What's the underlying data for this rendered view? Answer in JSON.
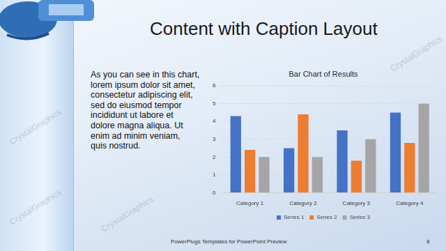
{
  "slide": {
    "title": "Content with Caption Layout",
    "caption": [
      "As you can see in this chart,",
      "lorem ipsum dolor sit amet,",
      "consectetur adipiscing elit,",
      "sed do eiusmod tempor",
      "incididunt ut labore et",
      "dolore magna aliqua. Ut",
      "enim ad minim veniam,",
      "quis nostrud."
    ],
    "footer": "PowerPlugs Templates for PowerPoint Preview",
    "page": "8",
    "watermark": "CrystalGraphics"
  },
  "chart_data": {
    "type": "bar",
    "title": "Bar Chart of Results",
    "categories": [
      "Category 1",
      "Category 2",
      "Category 3",
      "Category 4"
    ],
    "series": [
      {
        "name": "Series 1",
        "color": "#4472c4",
        "values": [
          4.3,
          2.5,
          3.5,
          4.5
        ]
      },
      {
        "name": "Series 2",
        "color": "#ed7d31",
        "values": [
          2.4,
          4.4,
          1.8,
          2.8
        ]
      },
      {
        "name": "Series 3",
        "color": "#a5a5a5",
        "values": [
          2,
          2,
          3,
          5
        ]
      }
    ],
    "ylim": [
      0,
      6
    ],
    "yticks": [
      0,
      1,
      2,
      3,
      4,
      5,
      6
    ],
    "grid": true,
    "legend": "bottom"
  }
}
